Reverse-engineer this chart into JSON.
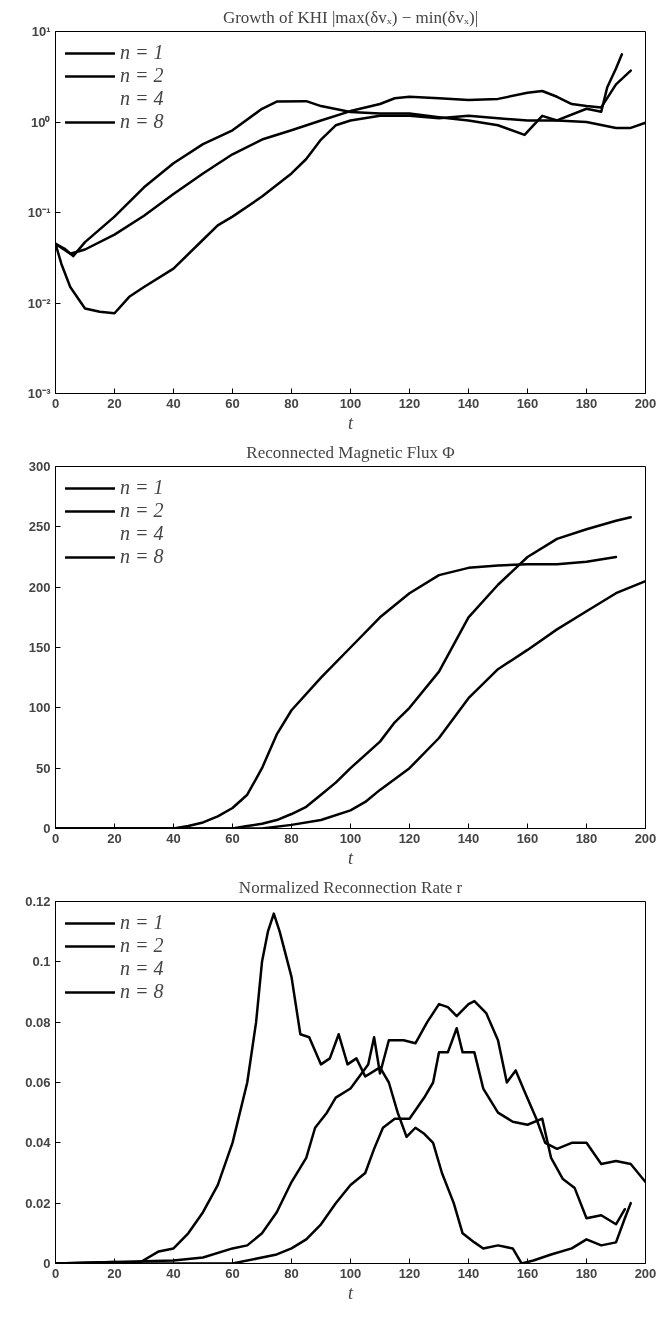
{
  "chart_data": [
    {
      "type": "line",
      "title": "Growth of KHI |max(δvₓ) − min(δvₓ)|",
      "xlabel": "t",
      "log": "y",
      "xlim": [
        0,
        200
      ],
      "ylim": [
        0.001,
        10
      ],
      "xticks": [
        0,
        20,
        40,
        60,
        80,
        100,
        120,
        140,
        160,
        180,
        200
      ],
      "yticks": [
        {
          "value": 0.001,
          "label": "10⁻³"
        },
        {
          "value": 0.01,
          "label": "10⁻²"
        },
        {
          "value": 0.1,
          "label": "10⁻¹"
        },
        {
          "value": 1,
          "label": "10⁰"
        },
        {
          "value": 10,
          "label": "10¹"
        }
      ],
      "grid": false,
      "legend": "top left",
      "marker": "none",
      "line_style": "solid",
      "series": [
        {
          "name": "n = 1",
          "color": "#000000",
          "x": [
            0,
            3,
            6,
            10,
            20,
            30,
            40,
            50,
            60,
            70,
            75,
            85,
            90,
            100,
            110,
            120,
            130,
            140,
            150,
            159,
            165,
            170,
            180,
            185,
            187,
            190,
            192
          ],
          "values": [
            0.045,
            0.04,
            0.033,
            0.047,
            0.09,
            0.19,
            0.35,
            0.57,
            0.81,
            1.4,
            1.68,
            1.7,
            1.5,
            1.29,
            1.24,
            1.24,
            1.13,
            1.04,
            0.92,
            0.72,
            1.17,
            1.04,
            1.4,
            1.3,
            2.4,
            3.9,
            5.6
          ]
        },
        {
          "name": "n = 2",
          "color": "#000000",
          "x": [
            0,
            5,
            10,
            20,
            30,
            40,
            50,
            60,
            70,
            80,
            90,
            100,
            110,
            115,
            120,
            130,
            140,
            150,
            160,
            165,
            170,
            175,
            180,
            185,
            190,
            195
          ],
          "values": [
            0.045,
            0.035,
            0.039,
            0.057,
            0.092,
            0.16,
            0.27,
            0.44,
            0.64,
            0.81,
            1.04,
            1.32,
            1.58,
            1.83,
            1.9,
            1.83,
            1.75,
            1.8,
            2.1,
            2.2,
            1.9,
            1.58,
            1.5,
            1.45,
            2.6,
            3.7
          ]
        },
        {
          "name": "n = 4"
        },
        {
          "name": "n = 8",
          "color": "#000000",
          "x": [
            0,
            2,
            5,
            10,
            15,
            20,
            25,
            30,
            40,
            50,
            55,
            60,
            70,
            80,
            85,
            90,
            95,
            100,
            110,
            120,
            130,
            140,
            150,
            160,
            170,
            180,
            190,
            195,
            200
          ],
          "values": [
            0.045,
            0.027,
            0.015,
            0.0087,
            0.008,
            0.0077,
            0.0117,
            0.015,
            0.024,
            0.05,
            0.072,
            0.09,
            0.15,
            0.27,
            0.39,
            0.64,
            0.92,
            1.04,
            1.17,
            1.17,
            1.1,
            1.17,
            1.1,
            1.04,
            1.04,
            1.0,
            0.86,
            0.86,
            0.98
          ]
        }
      ]
    },
    {
      "type": "line",
      "title": "Reconnected Magnetic Flux Φ",
      "xlabel": "t",
      "xlim": [
        0,
        200
      ],
      "ylim": [
        0,
        300
      ],
      "xticks": [
        0,
        20,
        40,
        60,
        80,
        100,
        120,
        140,
        160,
        180,
        200
      ],
      "yticks": [
        0,
        50,
        100,
        150,
        200,
        250,
        300
      ],
      "grid": false,
      "legend": "top left",
      "marker": "none",
      "line_style": "solid",
      "series": [
        {
          "name": "n = 1",
          "color": "#000000",
          "x": [
            0,
            40,
            45,
            50,
            55,
            60,
            65,
            70,
            75,
            80,
            90,
            100,
            110,
            115,
            120,
            130,
            140,
            150,
            160,
            170,
            180,
            190
          ],
          "values": [
            0,
            0,
            2,
            5,
            10,
            17,
            28,
            50,
            78,
            98,
            125,
            150,
            175,
            185,
            195,
            210,
            216,
            218,
            219,
            219,
            221,
            225
          ]
        },
        {
          "name": "n = 2",
          "color": "#000000",
          "x": [
            0,
            60,
            65,
            70,
            75,
            80,
            85,
            90,
            95,
            100,
            110,
            115,
            120,
            130,
            140,
            150,
            160,
            170,
            180,
            190,
            195
          ],
          "values": [
            0,
            0,
            2,
            4,
            7,
            12,
            18,
            28,
            38,
            50,
            72,
            88,
            100,
            130,
            175,
            202,
            225,
            240,
            248,
            255,
            258
          ]
        },
        {
          "name": "n = 4"
        },
        {
          "name": "n = 8",
          "color": "#000000",
          "x": [
            0,
            70,
            80,
            90,
            100,
            105,
            110,
            120,
            130,
            140,
            150,
            160,
            170,
            180,
            190,
            200
          ],
          "values": [
            0,
            0,
            3,
            7,
            15,
            22,
            32,
            50,
            75,
            108,
            132,
            148,
            165,
            180,
            195,
            205
          ]
        }
      ]
    },
    {
      "type": "line",
      "title": "Normalized Reconnection Rate r",
      "xlabel": "t",
      "xlim": [
        0,
        200
      ],
      "ylim": [
        0,
        0.12
      ],
      "xticks": [
        0,
        20,
        40,
        60,
        80,
        100,
        120,
        140,
        160,
        180,
        200
      ],
      "yticks": [
        0,
        0.02,
        0.04,
        0.06,
        0.08,
        0.1,
        0.12
      ],
      "grid": false,
      "legend": "top left",
      "marker": "none",
      "line_style": "solid",
      "series": [
        {
          "name": "n = 1",
          "color": "#000000",
          "x": [
            0,
            20,
            28,
            35,
            40,
            45,
            50,
            55,
            60,
            65,
            68,
            70,
            72,
            74,
            76,
            80,
            83,
            86,
            90,
            93,
            96,
            99,
            102,
            105,
            110,
            113,
            116,
            119,
            122,
            125,
            128,
            131,
            135,
            138,
            142,
            145,
            150,
            155,
            158,
            162,
            168,
            175,
            180,
            185,
            190,
            193,
            195
          ],
          "values": [
            0,
            0.0005,
            0,
            0.004,
            0.005,
            0.01,
            0.017,
            0.026,
            0.04,
            0.06,
            0.08,
            0.1,
            0.11,
            0.116,
            0.11,
            0.095,
            0.076,
            0.075,
            0.066,
            0.068,
            0.076,
            0.066,
            0.068,
            0.062,
            0.065,
            0.06,
            0.05,
            0.042,
            0.045,
            0.043,
            0.04,
            0.03,
            0.02,
            0.01,
            0.007,
            0.005,
            0.006,
            0.005,
            0,
            0.001,
            0.003,
            0.005,
            0.008,
            0.006,
            0.007,
            0.015,
            0.02
          ]
        },
        {
          "name": "n = 2",
          "color": "#000000",
          "x": [
            0,
            40,
            50,
            60,
            65,
            70,
            75,
            80,
            85,
            88,
            92,
            95,
            100,
            103,
            106,
            108,
            110,
            113,
            118,
            122,
            126,
            130,
            133,
            136,
            140,
            142,
            146,
            150,
            153,
            156,
            159,
            163,
            166,
            170,
            175,
            180,
            185,
            190,
            195,
            200
          ],
          "values": [
            0,
            0.001,
            0.002,
            0.005,
            0.006,
            0.01,
            0.017,
            0.027,
            0.035,
            0.045,
            0.05,
            0.055,
            0.058,
            0.062,
            0.066,
            0.075,
            0.063,
            0.074,
            0.074,
            0.073,
            0.08,
            0.086,
            0.085,
            0.082,
            0.086,
            0.087,
            0.083,
            0.074,
            0.06,
            0.064,
            0.057,
            0.048,
            0.04,
            0.038,
            0.04,
            0.04,
            0.033,
            0.034,
            0.033,
            0.027
          ]
        },
        {
          "name": "n = 4"
        },
        {
          "name": "n = 8",
          "color": "#000000",
          "x": [
            0,
            60,
            70,
            75,
            80,
            85,
            90,
            95,
            100,
            105,
            108,
            111,
            115,
            120,
            125,
            128,
            130,
            133,
            136,
            138,
            142,
            145,
            150,
            155,
            160,
            165,
            168,
            172,
            176,
            180,
            185,
            190,
            193
          ],
          "values": [
            0,
            0,
            0.002,
            0.003,
            0.005,
            0.008,
            0.013,
            0.02,
            0.026,
            0.03,
            0.038,
            0.045,
            0.048,
            0.048,
            0.055,
            0.06,
            0.07,
            0.07,
            0.078,
            0.07,
            0.07,
            0.058,
            0.05,
            0.047,
            0.046,
            0.048,
            0.035,
            0.028,
            0.025,
            0.015,
            0.016,
            0.013,
            0.018
          ]
        }
      ]
    }
  ]
}
